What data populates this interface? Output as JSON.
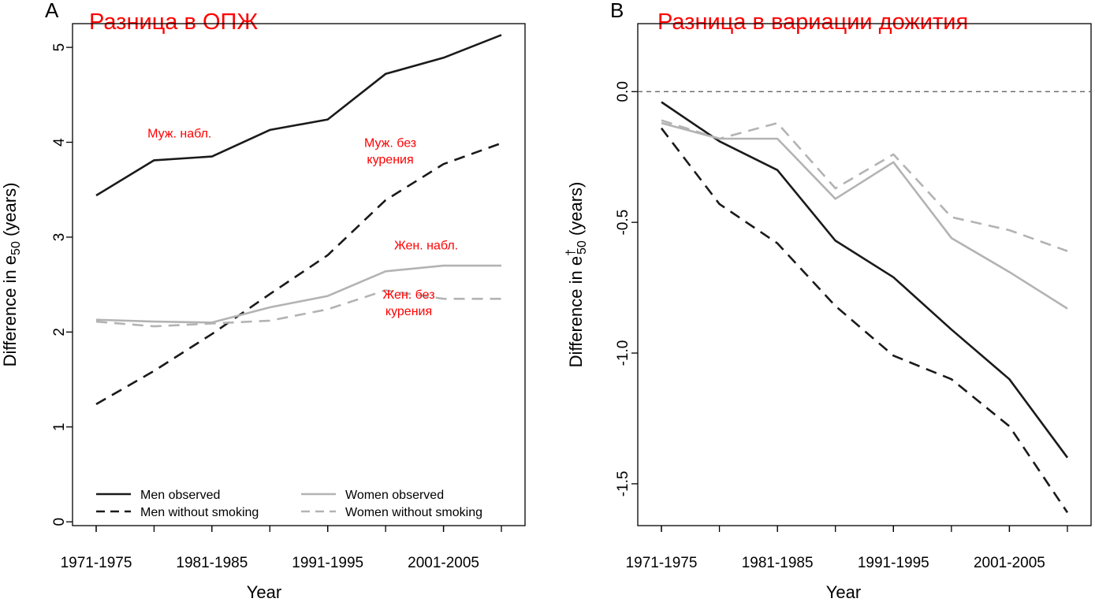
{
  "chart_data": [
    {
      "panel_letter": "A",
      "title": "Разница в ОПЖ",
      "type": "line",
      "xlabel": "Year",
      "ylabel": "Difference in e50 (years)",
      "ylabel_parts": {
        "prefix": "Difference in e",
        "sub": "50",
        "suffix": " (years)"
      },
      "x": [
        1973,
        1978,
        1983,
        1988,
        1993,
        1998,
        2003,
        2008
      ],
      "xlim": [
        1973,
        2008
      ],
      "ylim": [
        -0.04,
        5.25
      ],
      "xticks": [
        {
          "x": 1973,
          "label": "1971-1975"
        },
        {
          "x": 1983,
          "label": "1981-1985"
        },
        {
          "x": 1993,
          "label": "1991-1995"
        },
        {
          "x": 2003,
          "label": "2001-2005"
        }
      ],
      "yticks": [
        {
          "v": 0,
          "label": "0"
        },
        {
          "v": 1,
          "label": "1"
        },
        {
          "v": 2,
          "label": "2"
        },
        {
          "v": 3,
          "label": "3"
        },
        {
          "v": 4,
          "label": "4"
        },
        {
          "v": 5,
          "label": "5"
        }
      ],
      "series": [
        {
          "name": "Men observed",
          "color": "#1a1a1a",
          "dashed": false,
          "values": [
            3.44,
            3.81,
            3.85,
            4.13,
            4.24,
            4.72,
            4.89,
            5.13
          ]
        },
        {
          "name": "Men without smoking",
          "color": "#1a1a1a",
          "dashed": true,
          "values": [
            1.24,
            1.59,
            1.98,
            2.4,
            2.81,
            3.39,
            3.77,
            3.99
          ]
        },
        {
          "name": "Women observed",
          "color": "#b3b3b3",
          "dashed": false,
          "values": [
            2.13,
            2.11,
            2.1,
            2.26,
            2.38,
            2.64,
            2.7,
            2.7
          ]
        },
        {
          "name": "Women without smoking",
          "color": "#b3b3b3",
          "dashed": true,
          "values": [
            2.11,
            2.06,
            2.09,
            2.12,
            2.24,
            2.44,
            2.35,
            2.35
          ]
        }
      ],
      "annotations": [
        {
          "lines": [
            "Муж. набл."
          ],
          "x": 1980.2,
          "y": 4.05,
          "color": "#ff0000"
        },
        {
          "lines": [
            "Муж. без",
            "курения"
          ],
          "x": 1998.4,
          "y": 3.95,
          "color": "#ff0000"
        },
        {
          "lines": [
            "Жен. набл."
          ],
          "x": 2001.5,
          "y": 2.87,
          "color": "#ff0000"
        },
        {
          "lines": [
            "Жен. без",
            "курения"
          ],
          "x": 2000.0,
          "y": 2.35,
          "color": "#ff0000"
        }
      ],
      "legend": {
        "placement": "bottom",
        "columns": [
          [
            "Men observed",
            "Men without smoking"
          ],
          [
            "Women observed",
            "Women without smoking"
          ]
        ]
      }
    },
    {
      "panel_letter": "B",
      "title": "Разница в вариации дожития",
      "type": "line",
      "xlabel": "Year",
      "ylabel": "Difference in e†50 (years)",
      "ylabel_parts": {
        "prefix": "Difference in  e",
        "sup": "†",
        "sub": "50",
        "suffix": " (years)"
      },
      "x": [
        1973,
        1978,
        1983,
        1988,
        1993,
        1998,
        2003,
        2008
      ],
      "xlim": [
        1973,
        2008
      ],
      "ylim": [
        -1.66,
        0.26
      ],
      "reference_line": {
        "y": 0,
        "dashed": true,
        "color": "#555555"
      },
      "xticks": [
        {
          "x": 1973,
          "label": "1971-1975"
        },
        {
          "x": 1983,
          "label": "1981-1985"
        },
        {
          "x": 1993,
          "label": "1991-1995"
        },
        {
          "x": 2003,
          "label": "2001-2005"
        }
      ],
      "yticks": [
        {
          "v": 0.0,
          "label": "0.0"
        },
        {
          "v": -0.5,
          "label": "-0.5"
        },
        {
          "v": -1.0,
          "label": "-1.0"
        },
        {
          "v": -1.5,
          "label": "-1.5"
        }
      ],
      "series": [
        {
          "name": "Men observed",
          "color": "#1a1a1a",
          "dashed": false,
          "values": [
            -0.04,
            -0.19,
            -0.3,
            -0.57,
            -0.71,
            -0.91,
            -1.1,
            -1.4
          ]
        },
        {
          "name": "Men without smoking",
          "color": "#1a1a1a",
          "dashed": true,
          "values": [
            -0.14,
            -0.43,
            -0.58,
            -0.82,
            -1.01,
            -1.1,
            -1.28,
            -1.61
          ]
        },
        {
          "name": "Women observed",
          "color": "#b3b3b3",
          "dashed": false,
          "values": [
            -0.12,
            -0.18,
            -0.18,
            -0.41,
            -0.27,
            -0.56,
            -0.69,
            -0.83
          ]
        },
        {
          "name": "Women without smoking",
          "color": "#b3b3b3",
          "dashed": true,
          "values": [
            -0.11,
            -0.18,
            -0.12,
            -0.37,
            -0.24,
            -0.48,
            -0.53,
            -0.61
          ]
        }
      ]
    }
  ]
}
